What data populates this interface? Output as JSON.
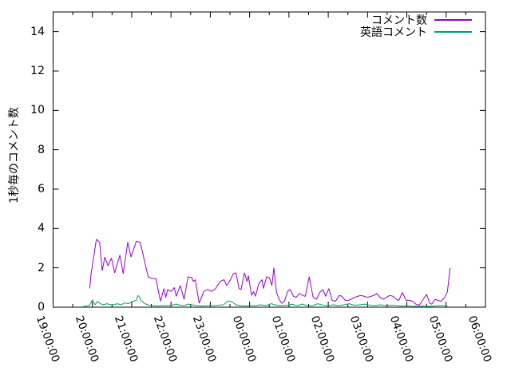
{
  "chart_data": {
    "type": "line",
    "title": "",
    "xlabel": "",
    "ylabel": "1秒毎のコメント数",
    "ylim": [
      0,
      15
    ],
    "yticks": [
      0,
      2,
      4,
      6,
      8,
      10,
      12,
      14
    ],
    "xtick_labels": [
      "19:00:00",
      "20:00:00",
      "21:00:00",
      "22:00:00",
      "23:00:00",
      "00:00:00",
      "01:00:00",
      "02:00:00",
      "03:00:00",
      "04:00:00",
      "05:00:00",
      "06:00:00"
    ],
    "x_minor_interval_minutes": 30,
    "grid": false,
    "legend_position": "top-right-inside",
    "axis_color": "#000000",
    "background_color": "#ffffff",
    "series": [
      {
        "name": "コメント数",
        "color": "#9400d3",
        "points": [
          [
            "19:56",
            0.95
          ],
          [
            "19:58",
            1.7
          ],
          [
            "20:06",
            3.45
          ],
          [
            "20:11",
            3.3
          ],
          [
            "20:15",
            1.85
          ],
          [
            "20:19",
            2.55
          ],
          [
            "20:24",
            2.1
          ],
          [
            "20:29",
            2.5
          ],
          [
            "20:34",
            1.75
          ],
          [
            "20:42",
            2.65
          ],
          [
            "20:47",
            1.7
          ],
          [
            "20:54",
            3.3
          ],
          [
            "20:59",
            2.55
          ],
          [
            "21:07",
            3.35
          ],
          [
            "21:13",
            3.3
          ],
          [
            "21:25",
            1.55
          ],
          [
            "21:31",
            1.45
          ],
          [
            "21:37",
            1.45
          ],
          [
            "21:42",
            0.6
          ],
          [
            "21:44",
            0.3
          ],
          [
            "21:49",
            0.95
          ],
          [
            "21:52",
            0.5
          ],
          [
            "21:55",
            0.9
          ],
          [
            "22:00",
            0.8
          ],
          [
            "22:05",
            1.0
          ],
          [
            "22:08",
            0.55
          ],
          [
            "22:14",
            1.1
          ],
          [
            "22:20",
            0.4
          ],
          [
            "22:26",
            1.55
          ],
          [
            "22:32",
            1.5
          ],
          [
            "22:34",
            1.3
          ],
          [
            "22:37",
            1.4
          ],
          [
            "22:43",
            0.2
          ],
          [
            "22:50",
            0.8
          ],
          [
            "22:56",
            0.9
          ],
          [
            "23:02",
            0.8
          ],
          [
            "23:08",
            0.95
          ],
          [
            "23:15",
            1.3
          ],
          [
            "23:21",
            1.4
          ],
          [
            "23:25",
            1.1
          ],
          [
            "23:30",
            1.35
          ],
          [
            "23:35",
            1.7
          ],
          [
            "23:39",
            1.75
          ],
          [
            "23:44",
            0.95
          ],
          [
            "23:47",
            0.9
          ],
          [
            "23:52",
            1.75
          ],
          [
            "23:56",
            1.3
          ],
          [
            "23:58",
            1.6
          ],
          [
            "00:03",
            0.6
          ],
          [
            "00:06",
            0.8
          ],
          [
            "00:09",
            0.55
          ],
          [
            "00:14",
            1.2
          ],
          [
            "00:19",
            1.4
          ],
          [
            "00:21",
            0.95
          ],
          [
            "00:26",
            1.55
          ],
          [
            "00:30",
            1.5
          ],
          [
            "00:34",
            1.1
          ],
          [
            "00:37",
            2.0
          ],
          [
            "00:41",
            0.75
          ],
          [
            "00:45",
            0.4
          ],
          [
            "00:49",
            0.2
          ],
          [
            "00:53",
            0.3
          ],
          [
            "00:58",
            0.8
          ],
          [
            "01:02",
            0.9
          ],
          [
            "01:07",
            0.55
          ],
          [
            "01:11",
            0.5
          ],
          [
            "01:16",
            0.7
          ],
          [
            "01:21",
            0.6
          ],
          [
            "01:25",
            0.55
          ],
          [
            "01:31",
            1.55
          ],
          [
            "01:37",
            0.5
          ],
          [
            "01:42",
            0.4
          ],
          [
            "01:47",
            0.75
          ],
          [
            "01:52",
            0.9
          ],
          [
            "01:56",
            0.55
          ],
          [
            "02:01",
            0.95
          ],
          [
            "02:06",
            0.35
          ],
          [
            "02:11",
            0.3
          ],
          [
            "02:17",
            0.6
          ],
          [
            "02:21",
            0.55
          ],
          [
            "02:26",
            0.35
          ],
          [
            "02:31",
            0.35
          ],
          [
            "02:35",
            0.4
          ],
          [
            "02:40",
            0.5
          ],
          [
            "02:45",
            0.55
          ],
          [
            "02:50",
            0.6
          ],
          [
            "02:55",
            0.55
          ],
          [
            "03:00",
            0.5
          ],
          [
            "03:05",
            0.55
          ],
          [
            "03:10",
            0.6
          ],
          [
            "03:14",
            0.7
          ],
          [
            "03:19",
            0.5
          ],
          [
            "03:24",
            0.4
          ],
          [
            "03:29",
            0.5
          ],
          [
            "03:34",
            0.6
          ],
          [
            "03:39",
            0.55
          ],
          [
            "03:44",
            0.4
          ],
          [
            "03:48",
            0.35
          ],
          [
            "03:53",
            0.75
          ],
          [
            "03:59",
            0.35
          ],
          [
            "04:04",
            0.35
          ],
          [
            "04:09",
            0.3
          ],
          [
            "04:14",
            0.15
          ],
          [
            "04:19",
            0.1
          ],
          [
            "04:24",
            0.35
          ],
          [
            "04:30",
            0.65
          ],
          [
            "04:35",
            0.2
          ],
          [
            "04:38",
            0.15
          ],
          [
            "04:43",
            0.4
          ],
          [
            "04:47",
            0.35
          ],
          [
            "04:52",
            0.3
          ],
          [
            "04:58",
            0.5
          ],
          [
            "05:02",
            0.8
          ],
          [
            "05:06",
            2.0
          ]
        ]
      },
      {
        "name": "英語コメント",
        "color": "#009e73",
        "points": [
          [
            "19:45",
            0.02
          ],
          [
            "19:56",
            0.1
          ],
          [
            "20:00",
            0.38
          ],
          [
            "20:04",
            0.12
          ],
          [
            "20:08",
            0.3
          ],
          [
            "20:12",
            0.18
          ],
          [
            "20:17",
            0.12
          ],
          [
            "20:22",
            0.18
          ],
          [
            "20:28",
            0.12
          ],
          [
            "20:33",
            0.12
          ],
          [
            "20:38",
            0.18
          ],
          [
            "20:44",
            0.12
          ],
          [
            "20:49",
            0.22
          ],
          [
            "20:55",
            0.18
          ],
          [
            "21:00",
            0.28
          ],
          [
            "21:07",
            0.35
          ],
          [
            "21:10",
            0.6
          ],
          [
            "21:15",
            0.32
          ],
          [
            "21:20",
            0.18
          ],
          [
            "21:27",
            0.1
          ],
          [
            "21:33",
            0.08
          ],
          [
            "21:40",
            0.06
          ],
          [
            "21:48",
            0.08
          ],
          [
            "21:55",
            0.08
          ],
          [
            "22:02",
            0.1
          ],
          [
            "22:08",
            0.16
          ],
          [
            "22:14",
            0.1
          ],
          [
            "22:20",
            0.08
          ],
          [
            "22:26",
            0.16
          ],
          [
            "22:32",
            0.12
          ],
          [
            "22:40",
            0.08
          ],
          [
            "22:48",
            0.06
          ],
          [
            "22:56",
            0.08
          ],
          [
            "23:04",
            0.08
          ],
          [
            "23:12",
            0.1
          ],
          [
            "23:20",
            0.12
          ],
          [
            "23:27",
            0.32
          ],
          [
            "23:33",
            0.28
          ],
          [
            "23:39",
            0.12
          ],
          [
            "23:46",
            0.08
          ],
          [
            "23:54",
            0.06
          ],
          [
            "00:02",
            0.08
          ],
          [
            "00:10",
            0.08
          ],
          [
            "00:17",
            0.12
          ],
          [
            "00:25",
            0.08
          ],
          [
            "00:33",
            0.18
          ],
          [
            "00:41",
            0.1
          ],
          [
            "00:49",
            0.08
          ],
          [
            "00:57",
            0.1
          ],
          [
            "01:05",
            0.15
          ],
          [
            "01:13",
            0.08
          ],
          [
            "01:20",
            0.16
          ],
          [
            "01:28",
            0.08
          ],
          [
            "01:36",
            0.08
          ],
          [
            "01:44",
            0.18
          ],
          [
            "01:52",
            0.1
          ],
          [
            "02:00",
            0.08
          ],
          [
            "02:08",
            0.12
          ],
          [
            "02:16",
            0.08
          ],
          [
            "02:24",
            0.12
          ],
          [
            "02:32",
            0.18
          ],
          [
            "02:40",
            0.1
          ],
          [
            "02:48",
            0.12
          ],
          [
            "02:56",
            0.16
          ],
          [
            "03:04",
            0.1
          ],
          [
            "03:12",
            0.08
          ],
          [
            "03:20",
            0.12
          ],
          [
            "03:28",
            0.08
          ],
          [
            "03:36",
            0.1
          ],
          [
            "03:44",
            0.08
          ],
          [
            "03:52",
            0.06
          ],
          [
            "04:00",
            0.08
          ],
          [
            "04:08",
            0.05
          ],
          [
            "04:16",
            0.04
          ],
          [
            "04:24",
            0.06
          ],
          [
            "04:32",
            0.04
          ],
          [
            "04:40",
            0.05
          ],
          [
            "04:48",
            0.08
          ],
          [
            "04:56",
            0.08
          ],
          [
            "05:02",
            0.06
          ]
        ]
      }
    ]
  }
}
